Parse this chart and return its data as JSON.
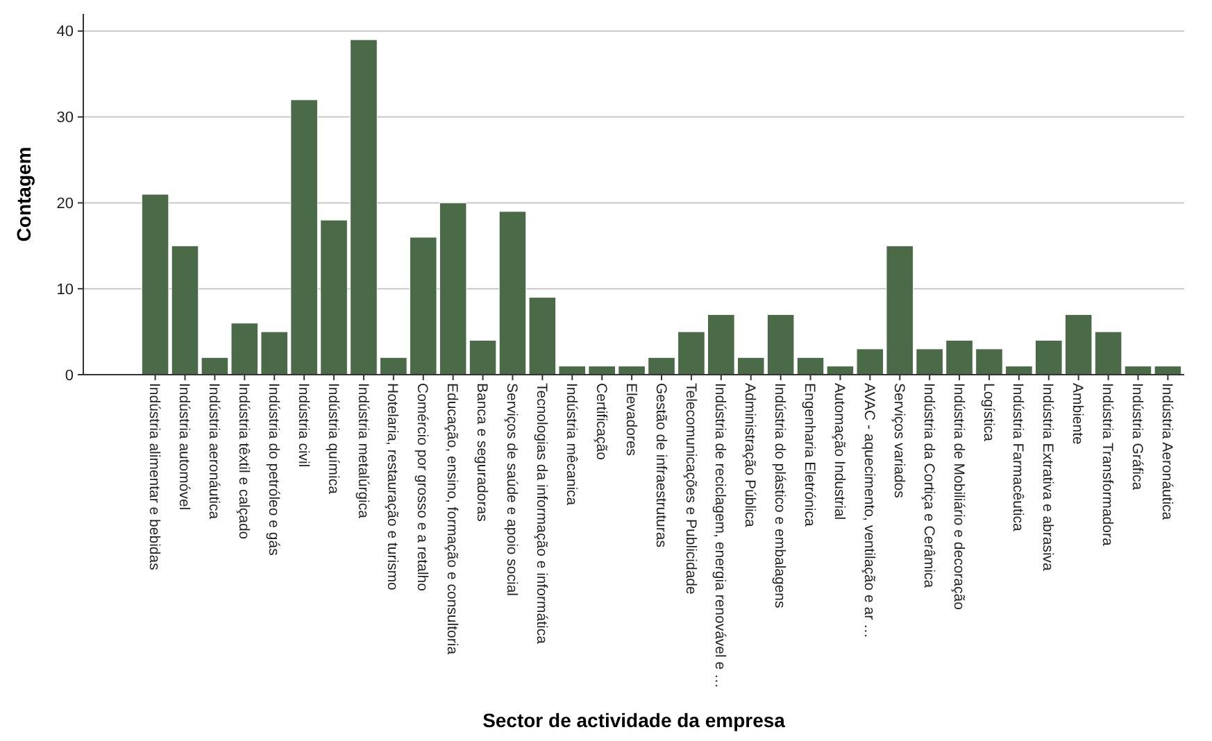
{
  "chart_data": {
    "type": "bar",
    "xlabel": "Sector de actividade da empresa",
    "ylabel": "Contagem",
    "categories": [
      "Indústria alimentar e bebidas",
      "Indústria automóvel",
      "Indústria aeronáutica",
      "Indústria têxtil e calçado",
      "Indústria do petróleo e gás",
      "Indústria civil",
      "Indústria química",
      "Indústria metalúrgica",
      "Hotelaria, restauração e turismo",
      "Comércio por grosso e a retalho",
      "Educação, ensino, formação e consultoria",
      "Banca e seguradoras",
      "Serviços de saúde e apoio social",
      "Tecnologias da informação e informática",
      "Indústria mêcanica",
      "Certificação",
      "Elevadores",
      "Gestão de infraestruturas",
      "Telecomunicações e Publicidade",
      "Indústria de reciclagem, energia renovável e …",
      "Administração Pública",
      "Indústria do plástico e embalagens",
      "Engenharia Eletrónica",
      "Automação Industrial",
      "AVAC - aquecimento, ventilação e ar …",
      "Serviços variados",
      "Indústria da Cortiça e Cerâmica",
      "Indústria de Mobiliário e decoração",
      "Logística",
      "Indústria Farmacêutica",
      "Indústria Extrativa e abrasiva",
      "Ambiente",
      "Indústria Transformadora",
      "Indústria Gráfica",
      "Indústria Aeronáutica"
    ],
    "values": [
      21,
      15,
      2,
      6,
      5,
      32,
      18,
      39,
      2,
      16,
      20,
      4,
      19,
      9,
      1,
      1,
      1,
      2,
      5,
      7,
      2,
      7,
      2,
      1,
      3,
      15,
      3,
      4,
      3,
      1,
      4,
      7,
      5,
      1,
      1
    ],
    "color": "#4a6a48",
    "ylim": [
      0,
      42
    ],
    "yticks": [
      0,
      10,
      20,
      30,
      40
    ],
    "grid": "y"
  }
}
